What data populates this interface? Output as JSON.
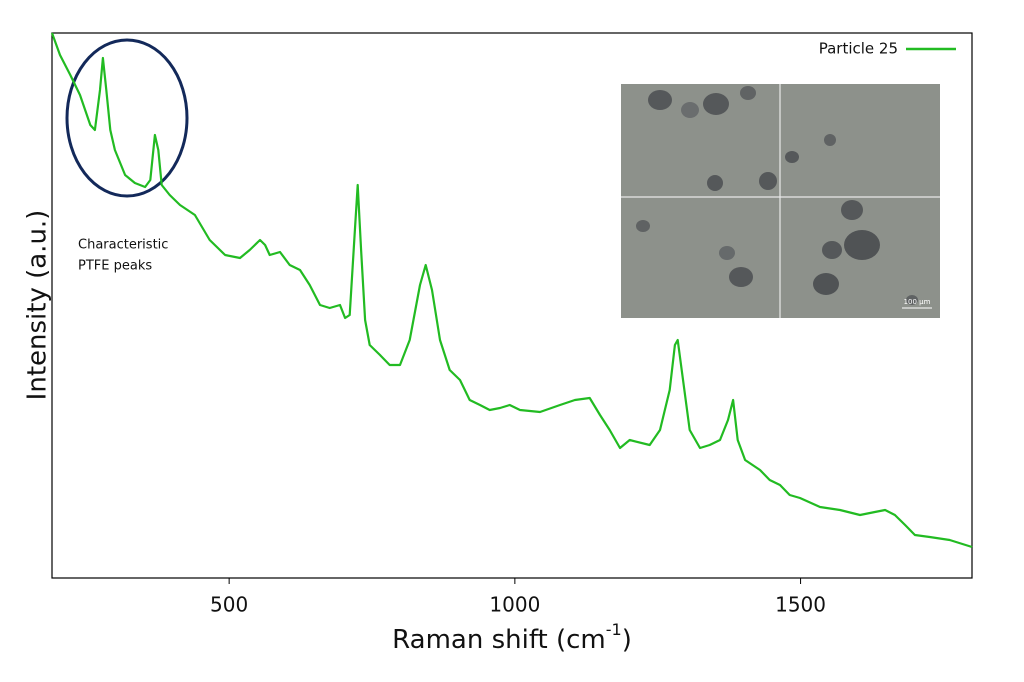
{
  "chart_data": {
    "type": "line",
    "x_label": {
      "text": "Raman shift (cm",
      "sup": "-1",
      "end": ")"
    },
    "y_label": "Intensity (a.u.)",
    "annotation": [
      "Characteristic",
      "PTFE peaks"
    ],
    "inset_scale_label": "100 µm",
    "legend": "upper right",
    "xlim": [
      190,
      1800
    ],
    "xticks": [
      500,
      1000,
      1500
    ],
    "ylim": [
      0,
      545
    ],
    "x": [
      190,
      204,
      222,
      239,
      257,
      265,
      274,
      279,
      285,
      292,
      300,
      318,
      335,
      353,
      362,
      370,
      376,
      382,
      396,
      414,
      440,
      466,
      493,
      519,
      536,
      554,
      563,
      571,
      589,
      606,
      624,
      641,
      659,
      676,
      694,
      703,
      711,
      720,
      725,
      731,
      738,
      746,
      764,
      781,
      799,
      816,
      834,
      844,
      855,
      869,
      886,
      904,
      921,
      939,
      956,
      974,
      991,
      1009,
      1044,
      1079,
      1105,
      1131,
      1149,
      1166,
      1184,
      1201,
      1236,
      1254,
      1271,
      1280,
      1285,
      1292,
      1306,
      1324,
      1341,
      1359,
      1373,
      1382,
      1390,
      1403,
      1429,
      1446,
      1464,
      1481,
      1499,
      1534,
      1569,
      1604,
      1630,
      1648,
      1665,
      1683,
      1700,
      1726,
      1761,
      1800
    ],
    "series": [
      {
        "name": "Particle 25",
        "color": "#22bb22",
        "values": [
          545,
          523,
          503,
          483,
          453,
          448,
          488,
          520,
          488,
          448,
          428,
          403,
          395,
          391,
          398,
          443,
          428,
          393,
          383,
          373,
          363,
          338,
          323,
          320,
          328,
          338,
          333,
          323,
          326,
          313,
          308,
          293,
          273,
          270,
          273,
          260,
          263,
          348,
          393,
          328,
          258,
          233,
          223,
          213,
          213,
          238,
          293,
          313,
          288,
          238,
          208,
          198,
          178,
          173,
          168,
          170,
          173,
          168,
          166,
          173,
          178,
          180,
          163,
          148,
          130,
          138,
          133,
          148,
          188,
          233,
          238,
          208,
          148,
          130,
          133,
          138,
          158,
          178,
          138,
          118,
          108,
          98,
          93,
          83,
          80,
          71,
          68,
          63,
          66,
          68,
          63,
          53,
          43,
          41,
          38,
          31
        ]
      }
    ]
  }
}
